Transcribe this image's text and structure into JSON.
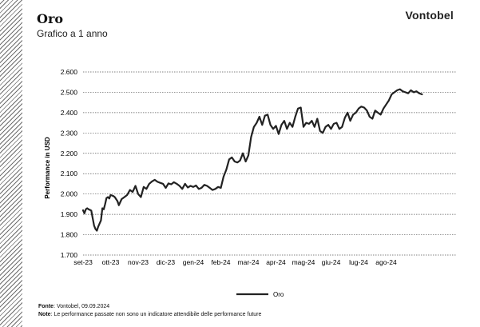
{
  "header": {
    "title": "Oro",
    "subtitle": "Grafico a 1 anno",
    "brand": "Vontobel"
  },
  "footer": {
    "source_label": "Fonte",
    "source_text": "Vontobel, 09.09.2024",
    "note_label": "Note",
    "note_text": "Le performance passate non sono un indicatore attendibile delle performance future"
  },
  "colors": {
    "line": "#222222",
    "grid": "#5a5a5a",
    "hatch": "#6e6e6e"
  },
  "chart_data": {
    "type": "line",
    "title": "Oro",
    "subtitle": "Grafico a 1 anno",
    "xlabel": "",
    "ylabel": "Performance in USD",
    "ylim": [
      1700,
      2600
    ],
    "yticks": [
      1700,
      1800,
      1900,
      2000,
      2100,
      2200,
      2300,
      2400,
      2500,
      2600
    ],
    "ytick_labels": [
      "1.700",
      "1.800",
      "1.900",
      "2.000",
      "2.100",
      "2.200",
      "2.300",
      "2.400",
      "2.500",
      "2.600"
    ],
    "xtick_labels": [
      "set-23",
      "ott-23",
      "nov-23",
      "dic-23",
      "gen-24",
      "feb-24",
      "mar-24",
      "apr-24",
      "mag-24",
      "giu-24",
      "lug-24",
      "ago-24"
    ],
    "grid": true,
    "legend": "bottom-center",
    "series": [
      {
        "name": "Oro",
        "x": [
          0,
          0.05,
          0.1,
          0.15,
          0.2,
          0.25,
          0.3,
          0.35,
          0.4,
          0.45,
          0.5,
          0.55,
          0.6,
          0.65,
          0.7,
          0.75,
          0.8,
          0.85,
          0.9,
          0.95,
          1.0,
          1.1,
          1.15,
          1.25,
          1.3,
          1.4,
          1.5,
          1.6,
          1.7,
          1.8,
          1.9,
          2.0,
          2.1,
          2.2,
          2.3,
          2.4,
          2.5,
          2.6,
          2.7,
          2.8,
          2.9,
          3.0,
          3.1,
          3.2,
          3.3,
          3.4,
          3.5,
          3.6,
          3.7,
          3.8,
          3.9,
          4.0,
          4.1,
          4.2,
          4.3,
          4.4,
          4.5,
          4.6,
          4.7,
          4.8,
          4.9,
          5.0,
          5.1,
          5.2,
          5.3,
          5.4,
          5.5,
          5.6,
          5.7,
          5.8,
          5.9,
          6.0,
          6.1,
          6.2,
          6.3,
          6.4,
          6.5,
          6.6,
          6.7,
          6.8,
          6.9,
          7.0,
          7.1,
          7.2,
          7.3,
          7.4,
          7.5,
          7.6,
          7.7,
          7.8,
          7.9,
          8.0,
          8.1,
          8.2,
          8.3,
          8.4,
          8.5,
          8.6,
          8.7,
          8.8,
          8.9,
          9.0,
          9.1,
          9.2,
          9.3,
          9.4,
          9.5,
          9.6,
          9.7,
          9.8,
          9.9,
          10.0,
          10.1,
          10.2,
          10.3,
          10.4,
          10.5,
          10.6,
          10.7,
          10.8,
          10.9,
          11.0,
          11.1,
          11.2,
          11.3,
          11.4,
          11.5,
          11.6,
          11.7,
          11.8,
          11.9,
          12.0,
          12.1,
          12.2,
          12.3
        ],
        "values": [
          1920,
          1905,
          1925,
          1930,
          1925,
          1922,
          1918,
          1880,
          1845,
          1828,
          1820,
          1840,
          1855,
          1870,
          1930,
          1925,
          1950,
          1980,
          1985,
          1978,
          1995,
          1990,
          1985,
          1965,
          1945,
          1975,
          1985,
          1995,
          2020,
          2010,
          2040,
          2000,
          1985,
          2035,
          2025,
          2050,
          2062,
          2070,
          2060,
          2055,
          2050,
          2030,
          2052,
          2048,
          2058,
          2050,
          2040,
          2025,
          2050,
          2032,
          2040,
          2035,
          2042,
          2025,
          2030,
          2045,
          2040,
          2030,
          2020,
          2025,
          2035,
          2030,
          2085,
          2120,
          2170,
          2180,
          2160,
          2155,
          2165,
          2200,
          2160,
          2190,
          2280,
          2330,
          2350,
          2380,
          2340,
          2385,
          2390,
          2340,
          2320,
          2335,
          2295,
          2340,
          2360,
          2320,
          2350,
          2330,
          2380,
          2420,
          2425,
          2330,
          2350,
          2345,
          2360,
          2330,
          2370,
          2310,
          2300,
          2330,
          2340,
          2320,
          2345,
          2350,
          2320,
          2330,
          2375,
          2400,
          2360,
          2390,
          2400,
          2420,
          2430,
          2425,
          2410,
          2380,
          2370,
          2410,
          2400,
          2390,
          2420,
          2440,
          2460,
          2490,
          2500,
          2510,
          2515,
          2505,
          2500,
          2495,
          2510,
          2500,
          2505,
          2495,
          2490
        ]
      }
    ]
  }
}
